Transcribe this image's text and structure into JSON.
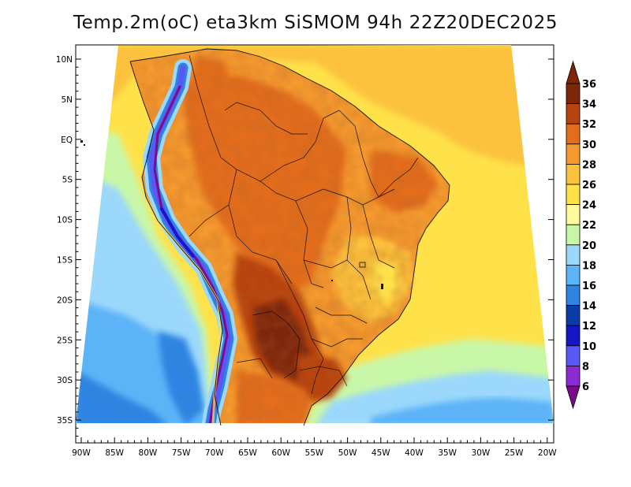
{
  "title": "Temp.2m(oC)  eta3km  SiSMOM  94h  22Z20DEC2025",
  "map": {
    "variable": "2m temperature",
    "units": "oC",
    "lon_range": [
      -91,
      -20
    ],
    "lat_range": [
      -38,
      12
    ],
    "lon_ticks": [
      "90W",
      "85W",
      "80W",
      "75W",
      "70W",
      "65W",
      "60W",
      "55W",
      "50W",
      "45W",
      "40W",
      "35W",
      "30W",
      "25W",
      "20W"
    ],
    "lat_ticks": [
      "10N",
      "5N",
      "EQ",
      "5S",
      "10S",
      "15S",
      "20S",
      "25S",
      "30S",
      "35S"
    ],
    "features": [
      "coastlines",
      "country borders",
      "Brazilian state borders"
    ]
  },
  "colorbar": {
    "labels": [
      "36",
      "34",
      "32",
      "30",
      "28",
      "26",
      "24",
      "22",
      "20",
      "18",
      "16",
      "14",
      "12",
      "10",
      "8",
      "6"
    ],
    "levels": [
      6,
      8,
      10,
      12,
      14,
      16,
      18,
      20,
      22,
      24,
      26,
      28,
      30,
      32,
      34,
      36
    ],
    "colors": [
      "#7a0c8c",
      "#8c2bd6",
      "#5a58f5",
      "#1616c8",
      "#0a3aa8",
      "#2f84e0",
      "#5bb4f7",
      "#9bd8fb",
      "#c9f7a8",
      "#fffb9a",
      "#ffe24a",
      "#fcc23e",
      "#f59a2f",
      "#e46d1c",
      "#b8430f",
      "#7d2608"
    ]
  }
}
